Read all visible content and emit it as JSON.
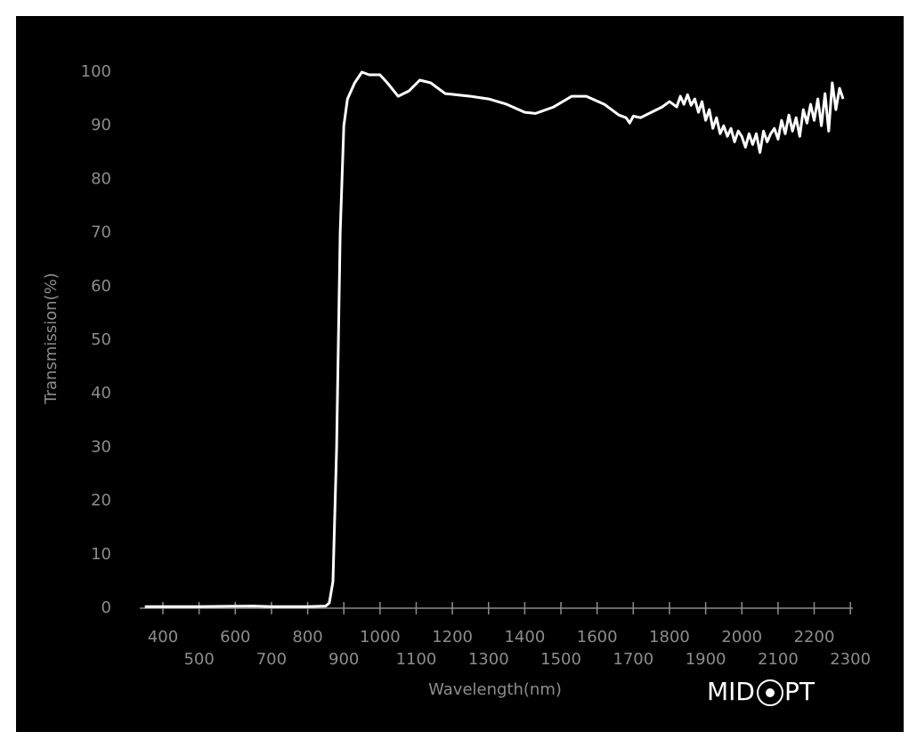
{
  "chart_data": {
    "type": "line",
    "y_label": "Transmission(%)",
    "x_label": "Wavelength(nm)",
    "logo_left": "MID",
    "logo_right": "PT",
    "series": [
      {
        "color": "#ffffff",
        "x": [
          350,
          500,
          650,
          700,
          800,
          850,
          860,
          870,
          880,
          890,
          900,
          910,
          930,
          950,
          970,
          1000,
          1020,
          1050,
          1080,
          1110,
          1140,
          1180,
          1250,
          1300,
          1350,
          1400,
          1430,
          1480,
          1530,
          1570,
          1620,
          1660,
          1680,
          1690,
          1700,
          1720,
          1750,
          1780,
          1800,
          1820,
          1830,
          1840,
          1850,
          1860,
          1870,
          1880,
          1890,
          1900,
          1910,
          1920,
          1930,
          1940,
          1950,
          1960,
          1970,
          1980,
          1990,
          2000,
          2010,
          2020,
          2030,
          2040,
          2050,
          2060,
          2070,
          2080,
          2090,
          2100,
          2110,
          2120,
          2130,
          2140,
          2150,
          2160,
          2170,
          2180,
          2190,
          2200,
          2210,
          2220,
          2230,
          2240,
          2250,
          2260,
          2270,
          2280
        ],
        "values": [
          0.3,
          0.3,
          0.4,
          0.3,
          0.3,
          0.4,
          1,
          5,
          30,
          70,
          90,
          95,
          98,
          100,
          99.5,
          99.5,
          98,
          95.5,
          96.5,
          98.5,
          98,
          96,
          95.5,
          95,
          94,
          92.5,
          92.3,
          93.5,
          95.5,
          95.5,
          94,
          92,
          91.5,
          90.5,
          91.8,
          91.5,
          92.5,
          93.5,
          94.5,
          93.5,
          95.5,
          94,
          95.8,
          93.8,
          95,
          92.5,
          94.5,
          91,
          93,
          89.5,
          91.5,
          88.5,
          90,
          88,
          89.5,
          87,
          89,
          88,
          86,
          88.5,
          86.5,
          88.5,
          85,
          89,
          87,
          88.5,
          89.5,
          87.5,
          91,
          88.5,
          92,
          89,
          91.5,
          88,
          93,
          90.5,
          94,
          91,
          95,
          90,
          96,
          89,
          98,
          93,
          97,
          95
        ]
      }
    ],
    "xlim": [
      336,
      2307
    ],
    "xticks": [
      400,
      500,
      600,
      700,
      800,
      900,
      1000,
      1100,
      1200,
      1300,
      1400,
      1500,
      1600,
      1700,
      1800,
      1900,
      2000,
      2100,
      2200,
      2300
    ],
    "ylim": [
      0,
      100
    ],
    "yticks": [
      0,
      10,
      20,
      30,
      40,
      50,
      60,
      70,
      80,
      90,
      100
    ]
  }
}
